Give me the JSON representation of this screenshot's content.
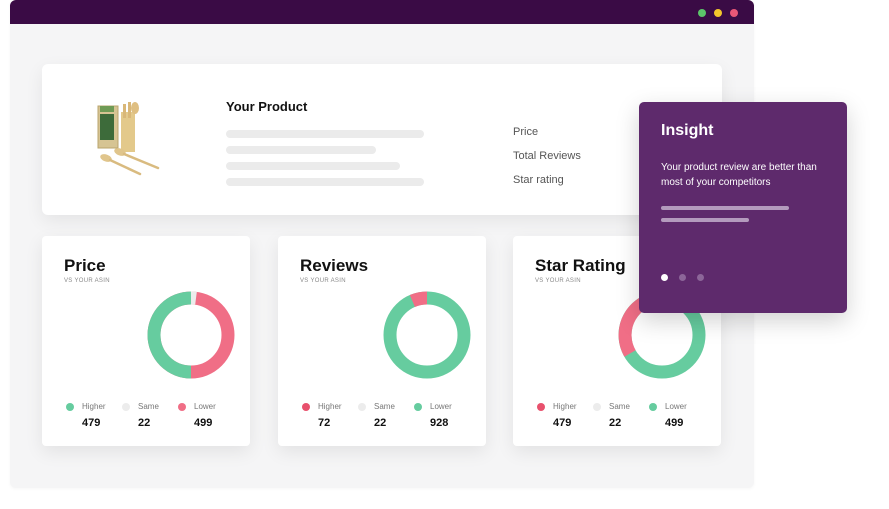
{
  "window": {
    "titlebar_color": "#3a0b45",
    "controls": [
      {
        "name": "green",
        "color": "#5cc46a"
      },
      {
        "name": "yellow",
        "color": "#f3c62c"
      },
      {
        "name": "red",
        "color": "#ea5777"
      }
    ]
  },
  "product": {
    "title": "Your Product",
    "image_icon": "kitchen-utensils-product-image",
    "meta_labels": [
      "Price",
      "Total Reviews",
      "Star rating"
    ]
  },
  "colors": {
    "higher": "#e8516d",
    "same": "#ececec",
    "lower": "#66cc9f",
    "higher_lower_price": {
      "higher": "#66cc9f",
      "lower": "#f06e86"
    }
  },
  "cards": [
    {
      "title": "Price",
      "subtitle": "VS YOUR ASIN",
      "legend": [
        {
          "label": "Higher",
          "value": "479",
          "color": "#66cc9f"
        },
        {
          "label": "Same",
          "value": "22",
          "color": "#ececec"
        },
        {
          "label": "Lower",
          "value": "499",
          "color": "#f06e86"
        }
      ]
    },
    {
      "title": "Reviews",
      "subtitle": "VS YOUR ASIN",
      "legend": [
        {
          "label": "Higher",
          "value": "72",
          "color": "#e8516d"
        },
        {
          "label": "Same",
          "value": "22",
          "color": "#ececec"
        },
        {
          "label": "Lower",
          "value": "928",
          "color": "#66cc9f"
        }
      ]
    },
    {
      "title": "Star Rating",
      "subtitle": "VS YOUR ASIN",
      "legend": [
        {
          "label": "Higher",
          "value": "479",
          "color": "#e8516d"
        },
        {
          "label": "Same",
          "value": "22",
          "color": "#ececec"
        },
        {
          "label": "Lower",
          "value": "499",
          "color": "#66cc9f"
        }
      ]
    }
  ],
  "insight": {
    "title": "Insight",
    "text": "Your product review are better than most of your competitors",
    "active_page": 1,
    "page_count": 3,
    "background": "#5e2a6c"
  }
}
